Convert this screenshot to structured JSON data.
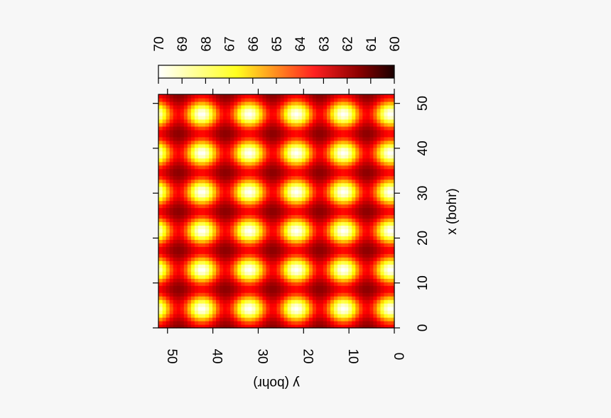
{
  "chart_data": {
    "type": "heatmap",
    "title": "",
    "colormap": "hot (black-red-yellow-white)",
    "colors": {
      "low": "#000000",
      "mid_low": "#8b0000",
      "mid": "#ff2020",
      "mid_high": "#ffff20",
      "high": "#ffffff",
      "frame": "#000000"
    },
    "xlabel": "x (bohr)",
    "ylabel": "y (bohr)",
    "xlim": [
      0,
      52
    ],
    "ylim": [
      0,
      52
    ],
    "x_ticks": [
      "0",
      "10",
      "20",
      "30",
      "40",
      "50"
    ],
    "y_ticks": [
      "0",
      "10",
      "20",
      "30",
      "40",
      "50"
    ],
    "colorbar": {
      "range": [
        60,
        70
      ],
      "ticks": [
        "70",
        "69",
        "68",
        "67",
        "66",
        "65",
        "64",
        "63",
        "62",
        "61",
        "60"
      ]
    },
    "grid": false,
    "orientation": "rotated 90° (image shown rotated clockwise)",
    "pattern": {
      "description": "periodic lattice of high-value maxima separated by low-value minima",
      "period_x": 8.667,
      "period_y": 10.4,
      "min_value": 60,
      "max_value": 70
    }
  }
}
